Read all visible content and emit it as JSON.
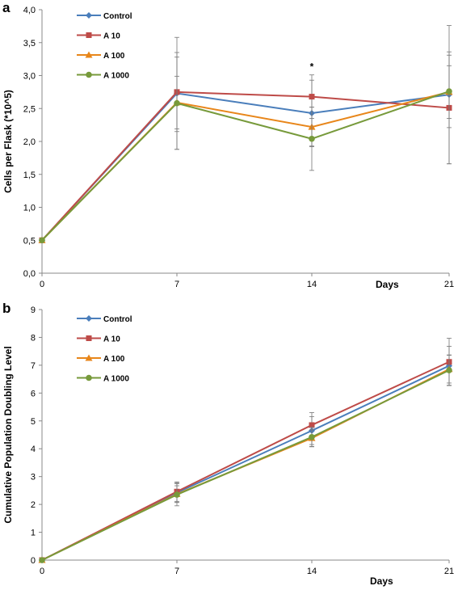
{
  "chart_data": [
    {
      "panel_label": "a",
      "type": "line",
      "ylabel": "Cells per Flask (*10^5)",
      "xlabel": "Days",
      "x": [
        0,
        7,
        14,
        21
      ],
      "ylim": [
        0,
        4
      ],
      "ytick_labels": [
        "0,0",
        "0,5",
        "1,0",
        "1,5",
        "2,0",
        "2,5",
        "3,0",
        "3,5",
        "4,0"
      ],
      "xtick_labels": [
        "0",
        "7",
        "14",
        "21"
      ],
      "legend_position": "top-left",
      "annotations": [
        {
          "text": "*",
          "x": 14
        }
      ],
      "series": [
        {
          "name": "Control",
          "color": "#4a7ebb",
          "marker": "diamond",
          "values": [
            0.5,
            2.73,
            2.43,
            2.71
          ],
          "err": [
            0,
            0.85,
            0.5,
            1.05
          ]
        },
        {
          "name": "A 10",
          "color": "#be4b48",
          "marker": "square",
          "values": [
            0.5,
            2.75,
            2.68,
            2.51
          ],
          "err": [
            0,
            0.6,
            0.33,
            0.85
          ]
        },
        {
          "name": "A 100",
          "color": "#e8861a",
          "marker": "triangle",
          "values": [
            0.5,
            2.59,
            2.22,
            2.75
          ],
          "err": [
            0,
            0.4,
            0.3,
            0.4
          ]
        },
        {
          "name": "A 1000",
          "color": "#779a3b",
          "marker": "circle",
          "values": [
            0.5,
            2.58,
            2.04,
            2.76
          ],
          "err": [
            0,
            0.7,
            0.48,
            0.55
          ]
        }
      ]
    },
    {
      "panel_label": "b",
      "type": "line",
      "ylabel": "Cumulative Population Doubling Level",
      "xlabel": "Days",
      "x": [
        0,
        7,
        14,
        21
      ],
      "ylim": [
        0,
        9
      ],
      "ytick_labels": [
        "0",
        "1",
        "2",
        "3",
        "4",
        "5",
        "6",
        "7",
        "8",
        "9"
      ],
      "xtick_labels": [
        "0",
        "7",
        "14",
        "21"
      ],
      "legend_position": "top-left",
      "series": [
        {
          "name": "Control",
          "color": "#4a7ebb",
          "marker": "diamond",
          "values": [
            0,
            2.42,
            4.65,
            6.98
          ],
          "err": [
            0,
            0.35,
            0.5,
            0.7
          ]
        },
        {
          "name": "A 10",
          "color": "#be4b48",
          "marker": "square",
          "values": [
            0,
            2.46,
            4.85,
            7.12
          ],
          "err": [
            0,
            0.35,
            0.45,
            0.85
          ]
        },
        {
          "name": "A 100",
          "color": "#e8861a",
          "marker": "triangle",
          "values": [
            0,
            2.37,
            4.38,
            6.86
          ],
          "err": [
            0,
            0.3,
            0.3,
            0.5
          ]
        },
        {
          "name": "A 1000",
          "color": "#779a3b",
          "marker": "circle",
          "values": [
            0,
            2.35,
            4.42,
            6.82
          ],
          "err": [
            0,
            0.4,
            0.35,
            0.55
          ]
        }
      ]
    }
  ]
}
